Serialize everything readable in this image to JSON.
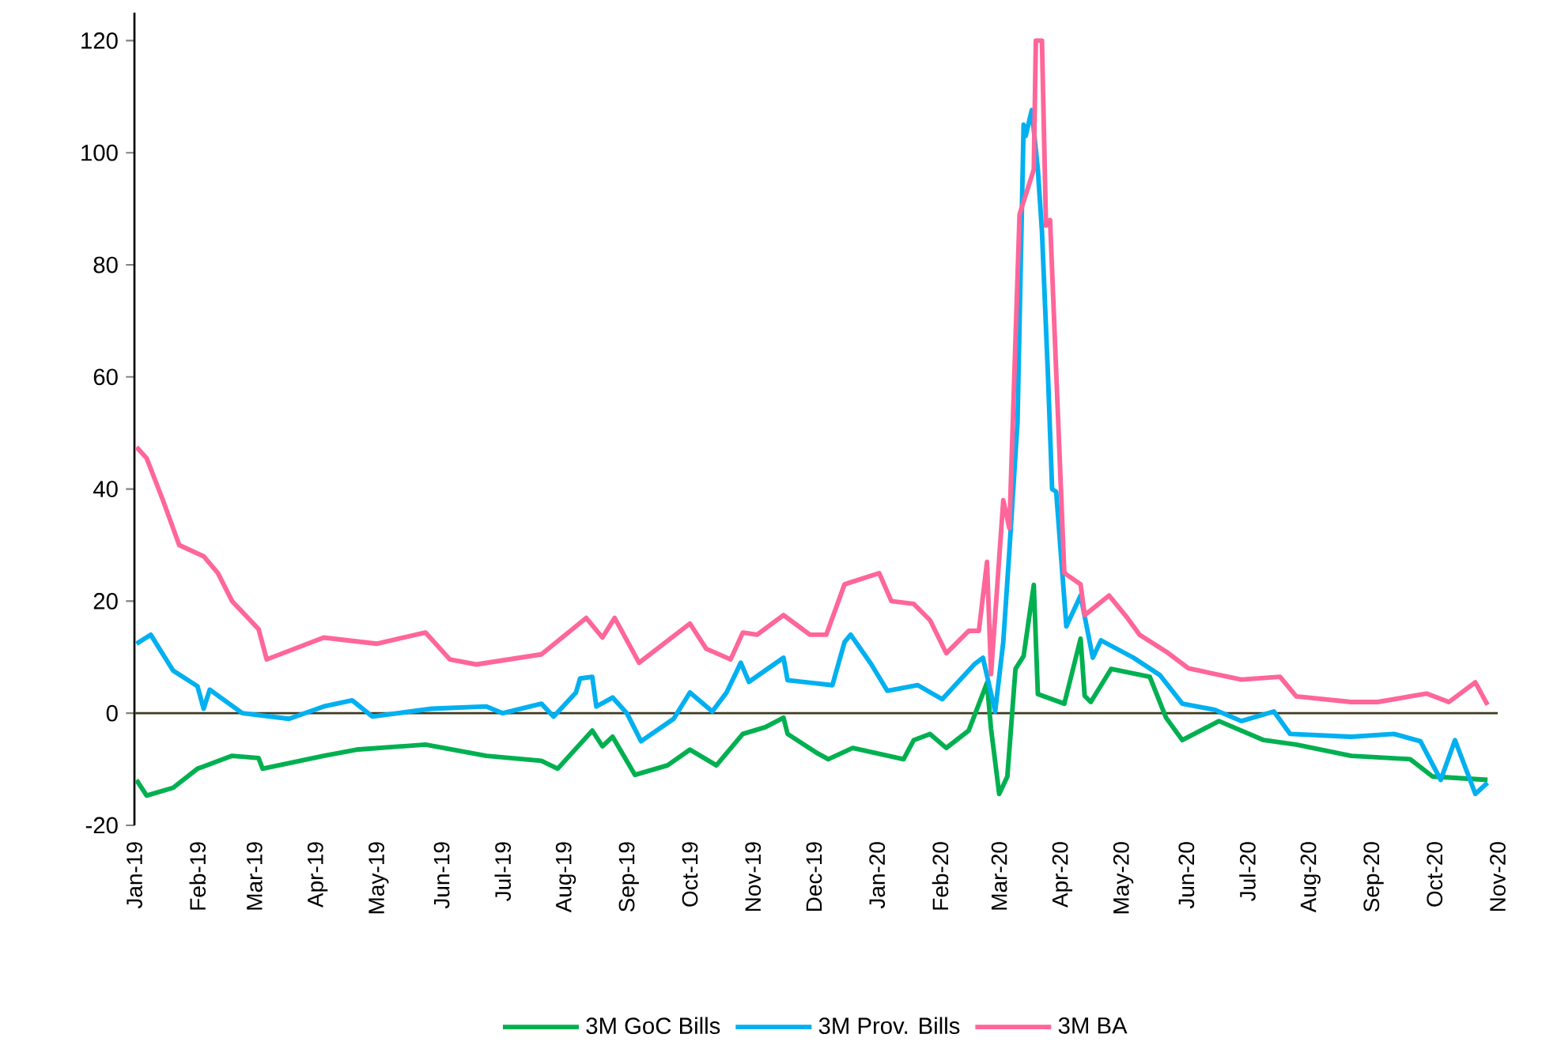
{
  "chart_data": {
    "type": "line",
    "xlim": [
      "2019-01-01",
      "2020-11-01"
    ],
    "ylim": [
      -20,
      125
    ],
    "yticks": [
      -20,
      0,
      20,
      40,
      60,
      80,
      100,
      120
    ],
    "xticks": [
      {
        "value": "2019-01-01",
        "label": "Jan-19"
      },
      {
        "value": "2019-02-01",
        "label": "Feb-19"
      },
      {
        "value": "2019-03-01",
        "label": "Mar-19"
      },
      {
        "value": "2019-04-01",
        "label": "Apr-19"
      },
      {
        "value": "2019-05-01",
        "label": "May-19"
      },
      {
        "value": "2019-06-01",
        "label": "Jun-19"
      },
      {
        "value": "2019-07-01",
        "label": "Jul-19"
      },
      {
        "value": "2019-08-01",
        "label": "Aug-19"
      },
      {
        "value": "2019-09-01",
        "label": "Sep-19"
      },
      {
        "value": "2019-10-01",
        "label": "Oct-19"
      },
      {
        "value": "2019-11-01",
        "label": "Nov-19"
      },
      {
        "value": "2019-12-01",
        "label": "Dec-19"
      },
      {
        "value": "2020-01-01",
        "label": "Jan-20"
      },
      {
        "value": "2020-02-01",
        "label": "Feb-20"
      },
      {
        "value": "2020-03-01",
        "label": "Mar-20"
      },
      {
        "value": "2020-04-01",
        "label": "Apr-20"
      },
      {
        "value": "2020-05-01",
        "label": "May-20"
      },
      {
        "value": "2020-06-01",
        "label": "Jun-20"
      },
      {
        "value": "2020-07-01",
        "label": "Jul-20"
      },
      {
        "value": "2020-08-01",
        "label": "Aug-20"
      },
      {
        "value": "2020-09-01",
        "label": "Sep-20"
      },
      {
        "value": "2020-10-01",
        "label": "Oct-20"
      },
      {
        "value": "2020-11-01",
        "label": "Nov-20"
      }
    ],
    "legend": "bottom",
    "grid": false,
    "ref_lines": [
      {
        "axis": "y",
        "value": 0,
        "color": "#3f3a1f"
      }
    ],
    "series": [
      {
        "name": "3M GoC Bills",
        "color": "#00b050",
        "x": [
          "2019-01-02",
          "2019-01-07",
          "2019-01-20",
          "2019-02-01",
          "2019-02-18",
          "2019-03-03",
          "2019-03-05",
          "2019-04-04",
          "2019-04-20",
          "2019-05-24",
          "2019-06-23",
          "2019-07-20",
          "2019-07-28",
          "2019-08-14",
          "2019-08-19",
          "2019-08-24",
          "2019-09-04",
          "2019-09-20",
          "2019-10-01",
          "2019-10-14",
          "2019-10-27",
          "2019-11-07",
          "2019-11-16",
          "2019-11-18",
          "2019-12-02",
          "2019-12-08",
          "2019-12-20",
          "2020-01-14",
          "2020-01-19",
          "2020-01-27",
          "2020-02-04",
          "2020-02-15",
          "2020-02-24",
          "2020-02-26",
          "2020-03-01",
          "2020-03-05",
          "2020-03-09",
          "2020-03-13",
          "2020-03-18",
          "2020-03-20",
          "2020-04-02",
          "2020-04-10",
          "2020-04-12",
          "2020-04-15",
          "2020-04-25",
          "2020-05-14",
          "2020-05-22",
          "2020-05-30",
          "2020-06-17",
          "2020-07-09",
          "2020-07-25",
          "2020-08-21",
          "2020-09-19",
          "2020-09-30",
          "2020-10-27"
        ],
        "values": [
          -11.9,
          -14.7,
          -13.3,
          -9.9,
          -7.6,
          -8,
          -9.9,
          -7.6,
          -6.5,
          -5.6,
          -7.6,
          -8.5,
          -9.9,
          -3.1,
          -5.9,
          -4.2,
          -11,
          -9.3,
          -6.5,
          -9.3,
          -3.7,
          -2.5,
          -0.8,
          -3.7,
          -7,
          -8.2,
          -6.2,
          -8.2,
          -4.8,
          -3.7,
          -6.2,
          -3.1,
          5.4,
          -2.8,
          -14.4,
          -11.3,
          7.9,
          10.2,
          22.9,
          3.4,
          1.7,
          13.3,
          3.1,
          2,
          7.9,
          6.5,
          -0.8,
          -4.8,
          -1.4,
          -4.8,
          -5.6,
          -7.6,
          -8.2,
          -11.3,
          -11.9
        ]
      },
      {
        "name": "3M Prov. Bills",
        "color": "#00b0f0",
        "x": [
          "2019-01-02",
          "2019-01-09",
          "2019-01-20",
          "2019-02-01",
          "2019-02-04",
          "2019-02-07",
          "2019-02-23",
          "2019-03-18",
          "2019-04-04",
          "2019-04-18",
          "2019-04-28",
          "2019-05-27",
          "2019-06-23",
          "2019-07-01",
          "2019-07-20",
          "2019-07-26",
          "2019-08-06",
          "2019-08-08",
          "2019-08-14",
          "2019-08-16",
          "2019-08-24",
          "2019-08-31",
          "2019-09-07",
          "2019-09-23",
          "2019-10-01",
          "2019-10-12",
          "2019-10-19",
          "2019-10-26",
          "2019-10-30",
          "2019-11-16",
          "2019-11-18",
          "2019-12-10",
          "2019-12-16",
          "2019-12-19",
          "2019-12-29",
          "2020-01-06",
          "2020-01-21",
          "2020-02-02",
          "2020-02-18",
          "2020-02-22",
          "2020-02-28",
          "2020-03-03",
          "2020-03-06",
          "2020-03-10",
          "2020-03-13",
          "2020-03-14",
          "2020-03-17",
          "2020-03-20",
          "2020-03-22",
          "2020-03-25",
          "2020-03-27",
          "2020-03-29",
          "2020-04-03",
          "2020-04-10",
          "2020-04-16",
          "2020-04-20",
          "2020-05-06",
          "2020-05-19",
          "2020-05-30",
          "2020-06-15",
          "2020-06-28",
          "2020-07-14",
          "2020-07-22",
          "2020-08-21",
          "2020-09-11",
          "2020-09-24",
          "2020-10-04",
          "2020-10-11",
          "2020-10-21",
          "2020-10-27"
        ],
        "values": [
          12.4,
          14,
          7.6,
          4.8,
          0.8,
          4.2,
          0,
          -1,
          1.2,
          2.3,
          -0.6,
          0.8,
          1.2,
          0,
          1.7,
          -0.6,
          3.7,
          6.2,
          6.5,
          1.2,
          2.8,
          0,
          -5,
          -1,
          3.7,
          0.3,
          3.7,
          9,
          5.6,
          9.9,
          5.9,
          5,
          12.7,
          14,
          8.8,
          4,
          5,
          2.5,
          8.8,
          9.9,
          0.3,
          12.7,
          29,
          52,
          105,
          103,
          107.6,
          97,
          86,
          60,
          40,
          39.5,
          15.5,
          21,
          9.9,
          13,
          9.9,
          6.8,
          1.7,
          0.6,
          -1.4,
          0.3,
          -3.7,
          -4.2,
          -3.7,
          -5,
          -11.9,
          -4.8,
          -14.4,
          -12.4
        ]
      },
      {
        "name": "3M BA",
        "color": "#ff6699",
        "x": [
          "2019-01-02",
          "2019-01-07",
          "2019-01-15",
          "2019-01-23",
          "2019-02-04",
          "2019-02-11",
          "2019-02-18",
          "2019-03-03",
          "2019-03-07",
          "2019-04-04",
          "2019-04-30",
          "2019-05-24",
          "2019-06-05",
          "2019-06-18",
          "2019-07-20",
          "2019-08-11",
          "2019-08-19",
          "2019-08-25",
          "2019-09-06",
          "2019-10-01",
          "2019-10-09",
          "2019-10-21",
          "2019-10-27",
          "2019-11-03",
          "2019-11-16",
          "2019-11-29",
          "2019-12-07",
          "2019-12-16",
          "2020-01-02",
          "2020-01-08",
          "2020-01-19",
          "2020-01-27",
          "2020-02-04",
          "2020-02-15",
          "2020-02-20",
          "2020-02-24",
          "2020-02-26",
          "2020-03-03",
          "2020-03-06",
          "2020-03-11",
          "2020-03-18",
          "2020-03-19",
          "2020-03-22",
          "2020-03-24",
          "2020-03-26",
          "2020-04-02",
          "2020-04-10",
          "2020-04-12",
          "2020-04-24",
          "2020-05-03",
          "2020-05-09",
          "2020-05-22",
          "2020-06-02",
          "2020-06-28",
          "2020-07-17",
          "2020-07-25",
          "2020-08-21",
          "2020-09-03",
          "2020-09-27",
          "2020-10-08",
          "2020-10-21",
          "2020-10-27"
        ],
        "values": [
          47.5,
          45.5,
          38,
          30,
          28,
          25,
          20,
          15,
          9.6,
          13.5,
          12.4,
          14.4,
          9.6,
          8.7,
          10.5,
          17,
          13.5,
          17,
          9,
          16,
          11.5,
          9.6,
          14.4,
          14,
          17.5,
          14,
          14,
          23,
          25,
          20,
          19.5,
          16.6,
          10.7,
          14.7,
          14.7,
          27,
          7,
          38,
          33,
          89,
          97,
          120,
          120,
          87,
          88,
          25,
          23,
          17.5,
          21,
          17,
          14,
          11,
          8,
          6,
          6.5,
          3,
          2,
          2,
          3.5,
          2,
          5.5,
          1.5
        ]
      }
    ]
  }
}
